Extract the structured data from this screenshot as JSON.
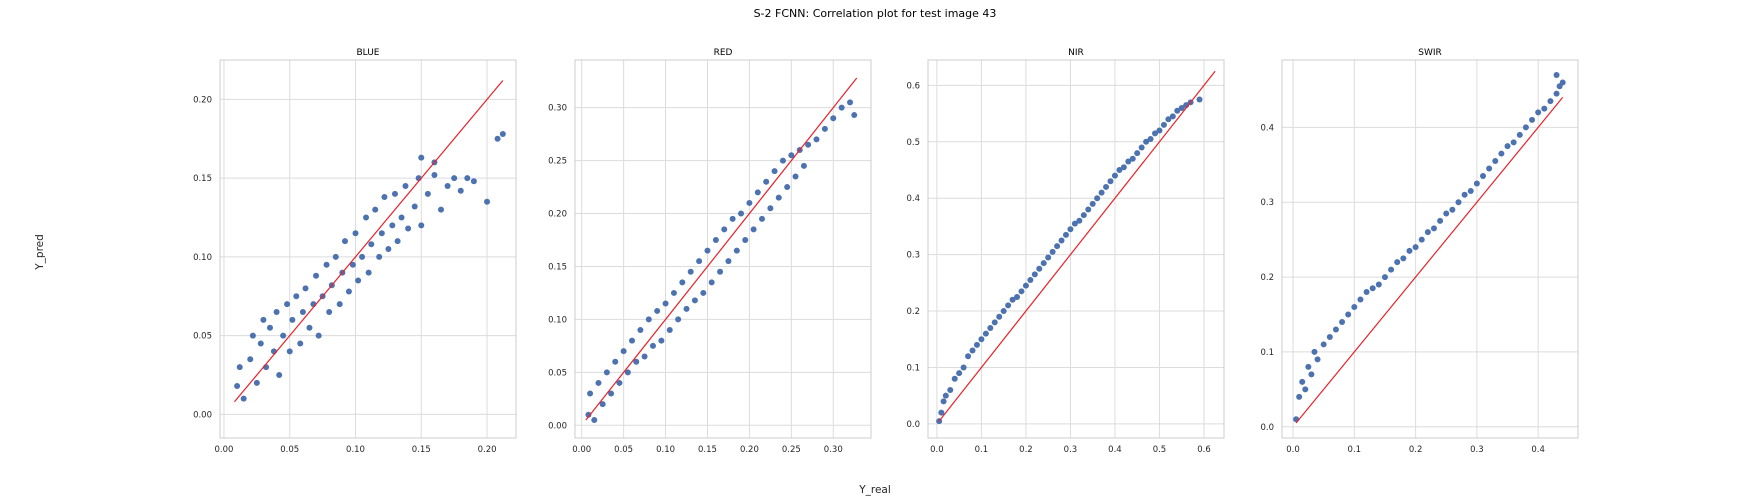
{
  "figure": {
    "title": "S-2 FCNN: Correlation plot for test image 43",
    "xlabel": "Y_real",
    "ylabel": "Y_pred"
  },
  "colors": {
    "points": "#4c72b0",
    "identity_line": "#e8222a",
    "grid": "#dcdcdc"
  },
  "chart_data": [
    {
      "type": "scatter",
      "title": "BLUE",
      "xlim": [
        -0.003,
        0.222
      ],
      "ylim": [
        -0.015,
        0.225
      ],
      "xticks": [
        0.0,
        0.05,
        0.1,
        0.15,
        0.2
      ],
      "yticks": [
        0.0,
        0.05,
        0.1,
        0.15,
        0.2
      ],
      "tick_format": "0.00",
      "identity_line": [
        0.008,
        0.212
      ],
      "series": [
        {
          "points": [
            [
              0.01,
              0.018
            ],
            [
              0.012,
              0.03
            ],
            [
              0.015,
              0.01
            ],
            [
              0.02,
              0.035
            ],
            [
              0.022,
              0.05
            ],
            [
              0.025,
              0.02
            ],
            [
              0.028,
              0.045
            ],
            [
              0.03,
              0.06
            ],
            [
              0.032,
              0.03
            ],
            [
              0.035,
              0.055
            ],
            [
              0.038,
              0.04
            ],
            [
              0.04,
              0.065
            ],
            [
              0.042,
              0.025
            ],
            [
              0.045,
              0.05
            ],
            [
              0.048,
              0.07
            ],
            [
              0.05,
              0.04
            ],
            [
              0.052,
              0.06
            ],
            [
              0.055,
              0.075
            ],
            [
              0.058,
              0.045
            ],
            [
              0.06,
              0.065
            ],
            [
              0.062,
              0.08
            ],
            [
              0.065,
              0.055
            ],
            [
              0.068,
              0.07
            ],
            [
              0.07,
              0.088
            ],
            [
              0.072,
              0.05
            ],
            [
              0.075,
              0.075
            ],
            [
              0.078,
              0.095
            ],
            [
              0.08,
              0.065
            ],
            [
              0.082,
              0.082
            ],
            [
              0.085,
              0.1
            ],
            [
              0.088,
              0.07
            ],
            [
              0.09,
              0.09
            ],
            [
              0.092,
              0.11
            ],
            [
              0.095,
              0.078
            ],
            [
              0.098,
              0.095
            ],
            [
              0.1,
              0.115
            ],
            [
              0.102,
              0.085
            ],
            [
              0.105,
              0.1
            ],
            [
              0.108,
              0.125
            ],
            [
              0.11,
              0.09
            ],
            [
              0.112,
              0.108
            ],
            [
              0.115,
              0.13
            ],
            [
              0.118,
              0.1
            ],
            [
              0.12,
              0.115
            ],
            [
              0.122,
              0.138
            ],
            [
              0.125,
              0.105
            ],
            [
              0.128,
              0.12
            ],
            [
              0.13,
              0.14
            ],
            [
              0.132,
              0.11
            ],
            [
              0.135,
              0.125
            ],
            [
              0.138,
              0.145
            ],
            [
              0.14,
              0.118
            ],
            [
              0.145,
              0.132
            ],
            [
              0.148,
              0.15
            ],
            [
              0.15,
              0.12
            ],
            [
              0.155,
              0.14
            ],
            [
              0.16,
              0.152
            ],
            [
              0.165,
              0.13
            ],
            [
              0.17,
              0.145
            ],
            [
              0.175,
              0.15
            ],
            [
              0.18,
              0.142
            ],
            [
              0.185,
              0.15
            ],
            [
              0.19,
              0.148
            ],
            [
              0.2,
              0.135
            ],
            [
              0.208,
              0.175
            ],
            [
              0.212,
              0.178
            ],
            [
              0.15,
              0.163
            ],
            [
              0.16,
              0.16
            ]
          ]
        }
      ]
    },
    {
      "type": "scatter",
      "title": "RED",
      "xlim": [
        -0.008,
        0.345
      ],
      "ylim": [
        -0.012,
        0.345
      ],
      "xticks": [
        0.0,
        0.05,
        0.1,
        0.15,
        0.2,
        0.25,
        0.3
      ],
      "yticks": [
        0.0,
        0.05,
        0.1,
        0.15,
        0.2,
        0.25,
        0.3
      ],
      "tick_format": "0.00",
      "identity_line": [
        0.005,
        0.328
      ],
      "series": [
        {
          "points": [
            [
              0.008,
              0.01
            ],
            [
              0.01,
              0.03
            ],
            [
              0.015,
              0.005
            ],
            [
              0.02,
              0.04
            ],
            [
              0.025,
              0.02
            ],
            [
              0.03,
              0.05
            ],
            [
              0.035,
              0.03
            ],
            [
              0.04,
              0.06
            ],
            [
              0.045,
              0.04
            ],
            [
              0.05,
              0.07
            ],
            [
              0.055,
              0.05
            ],
            [
              0.06,
              0.08
            ],
            [
              0.065,
              0.06
            ],
            [
              0.07,
              0.09
            ],
            [
              0.075,
              0.065
            ],
            [
              0.08,
              0.1
            ],
            [
              0.085,
              0.075
            ],
            [
              0.09,
              0.108
            ],
            [
              0.095,
              0.08
            ],
            [
              0.1,
              0.115
            ],
            [
              0.105,
              0.09
            ],
            [
              0.11,
              0.125
            ],
            [
              0.115,
              0.1
            ],
            [
              0.12,
              0.135
            ],
            [
              0.125,
              0.11
            ],
            [
              0.13,
              0.145
            ],
            [
              0.135,
              0.118
            ],
            [
              0.14,
              0.155
            ],
            [
              0.145,
              0.125
            ],
            [
              0.15,
              0.165
            ],
            [
              0.155,
              0.135
            ],
            [
              0.16,
              0.175
            ],
            [
              0.165,
              0.145
            ],
            [
              0.17,
              0.185
            ],
            [
              0.175,
              0.155
            ],
            [
              0.18,
              0.195
            ],
            [
              0.185,
              0.165
            ],
            [
              0.19,
              0.2
            ],
            [
              0.195,
              0.175
            ],
            [
              0.2,
              0.21
            ],
            [
              0.205,
              0.185
            ],
            [
              0.21,
              0.22
            ],
            [
              0.215,
              0.195
            ],
            [
              0.22,
              0.23
            ],
            [
              0.225,
              0.205
            ],
            [
              0.23,
              0.24
            ],
            [
              0.235,
              0.215
            ],
            [
              0.24,
              0.25
            ],
            [
              0.245,
              0.225
            ],
            [
              0.25,
              0.255
            ],
            [
              0.255,
              0.235
            ],
            [
              0.26,
              0.26
            ],
            [
              0.265,
              0.245
            ],
            [
              0.27,
              0.265
            ],
            [
              0.28,
              0.27
            ],
            [
              0.29,
              0.28
            ],
            [
              0.3,
              0.29
            ],
            [
              0.31,
              0.3
            ],
            [
              0.32,
              0.305
            ],
            [
              0.325,
              0.293
            ]
          ]
        }
      ]
    },
    {
      "type": "scatter",
      "title": "NIR",
      "xlim": [
        -0.02,
        0.645
      ],
      "ylim": [
        -0.025,
        0.645
      ],
      "xticks": [
        0.0,
        0.1,
        0.2,
        0.3,
        0.4,
        0.5,
        0.6
      ],
      "yticks": [
        0.0,
        0.1,
        0.2,
        0.3,
        0.4,
        0.5,
        0.6
      ],
      "tick_format": "0.0",
      "identity_line": [
        0.005,
        0.625
      ],
      "series": [
        {
          "points": [
            [
              0.005,
              0.005
            ],
            [
              0.01,
              0.02
            ],
            [
              0.015,
              0.04
            ],
            [
              0.02,
              0.05
            ],
            [
              0.03,
              0.06
            ],
            [
              0.04,
              0.08
            ],
            [
              0.05,
              0.09
            ],
            [
              0.06,
              0.1
            ],
            [
              0.07,
              0.12
            ],
            [
              0.08,
              0.13
            ],
            [
              0.09,
              0.14
            ],
            [
              0.1,
              0.15
            ],
            [
              0.11,
              0.16
            ],
            [
              0.12,
              0.17
            ],
            [
              0.13,
              0.18
            ],
            [
              0.14,
              0.19
            ],
            [
              0.15,
              0.2
            ],
            [
              0.16,
              0.21
            ],
            [
              0.17,
              0.22
            ],
            [
              0.18,
              0.225
            ],
            [
              0.19,
              0.235
            ],
            [
              0.2,
              0.245
            ],
            [
              0.21,
              0.255
            ],
            [
              0.22,
              0.265
            ],
            [
              0.23,
              0.275
            ],
            [
              0.24,
              0.285
            ],
            [
              0.25,
              0.295
            ],
            [
              0.26,
              0.305
            ],
            [
              0.27,
              0.315
            ],
            [
              0.28,
              0.325
            ],
            [
              0.29,
              0.335
            ],
            [
              0.3,
              0.345
            ],
            [
              0.31,
              0.355
            ],
            [
              0.32,
              0.36
            ],
            [
              0.33,
              0.37
            ],
            [
              0.34,
              0.38
            ],
            [
              0.35,
              0.39
            ],
            [
              0.36,
              0.4
            ],
            [
              0.37,
              0.41
            ],
            [
              0.38,
              0.42
            ],
            [
              0.39,
              0.43
            ],
            [
              0.4,
              0.44
            ],
            [
              0.41,
              0.45
            ],
            [
              0.42,
              0.455
            ],
            [
              0.43,
              0.465
            ],
            [
              0.44,
              0.47
            ],
            [
              0.45,
              0.48
            ],
            [
              0.46,
              0.49
            ],
            [
              0.47,
              0.5
            ],
            [
              0.48,
              0.505
            ],
            [
              0.49,
              0.515
            ],
            [
              0.5,
              0.52
            ],
            [
              0.51,
              0.53
            ],
            [
              0.52,
              0.54
            ],
            [
              0.53,
              0.545
            ],
            [
              0.54,
              0.555
            ],
            [
              0.55,
              0.56
            ],
            [
              0.56,
              0.565
            ],
            [
              0.57,
              0.57
            ],
            [
              0.59,
              0.575
            ]
          ]
        }
      ]
    },
    {
      "type": "scatter",
      "title": "SWIR",
      "xlim": [
        -0.018,
        0.465
      ],
      "ylim": [
        -0.015,
        0.49
      ],
      "xticks": [
        0.0,
        0.1,
        0.2,
        0.3,
        0.4
      ],
      "yticks": [
        0.0,
        0.1,
        0.2,
        0.3,
        0.4
      ],
      "tick_format": "0.0",
      "identity_line": [
        0.005,
        0.44
      ],
      "series": [
        {
          "points": [
            [
              0.005,
              0.01
            ],
            [
              0.01,
              0.04
            ],
            [
              0.015,
              0.06
            ],
            [
              0.02,
              0.05
            ],
            [
              0.025,
              0.08
            ],
            [
              0.03,
              0.07
            ],
            [
              0.035,
              0.1
            ],
            [
              0.04,
              0.09
            ],
            [
              0.05,
              0.11
            ],
            [
              0.06,
              0.12
            ],
            [
              0.07,
              0.13
            ],
            [
              0.08,
              0.14
            ],
            [
              0.09,
              0.15
            ],
            [
              0.1,
              0.16
            ],
            [
              0.11,
              0.17
            ],
            [
              0.12,
              0.18
            ],
            [
              0.13,
              0.185
            ],
            [
              0.14,
              0.19
            ],
            [
              0.15,
              0.2
            ],
            [
              0.16,
              0.21
            ],
            [
              0.17,
              0.22
            ],
            [
              0.18,
              0.225
            ],
            [
              0.19,
              0.235
            ],
            [
              0.2,
              0.24
            ],
            [
              0.21,
              0.25
            ],
            [
              0.22,
              0.26
            ],
            [
              0.23,
              0.265
            ],
            [
              0.24,
              0.275
            ],
            [
              0.25,
              0.285
            ],
            [
              0.26,
              0.29
            ],
            [
              0.27,
              0.3
            ],
            [
              0.28,
              0.31
            ],
            [
              0.29,
              0.315
            ],
            [
              0.3,
              0.325
            ],
            [
              0.31,
              0.335
            ],
            [
              0.32,
              0.345
            ],
            [
              0.33,
              0.355
            ],
            [
              0.34,
              0.365
            ],
            [
              0.35,
              0.375
            ],
            [
              0.36,
              0.38
            ],
            [
              0.37,
              0.39
            ],
            [
              0.38,
              0.4
            ],
            [
              0.39,
              0.41
            ],
            [
              0.4,
              0.42
            ],
            [
              0.41,
              0.425
            ],
            [
              0.42,
              0.435
            ],
            [
              0.43,
              0.445
            ],
            [
              0.435,
              0.455
            ],
            [
              0.44,
              0.46
            ],
            [
              0.43,
              0.47
            ]
          ]
        }
      ]
    }
  ]
}
